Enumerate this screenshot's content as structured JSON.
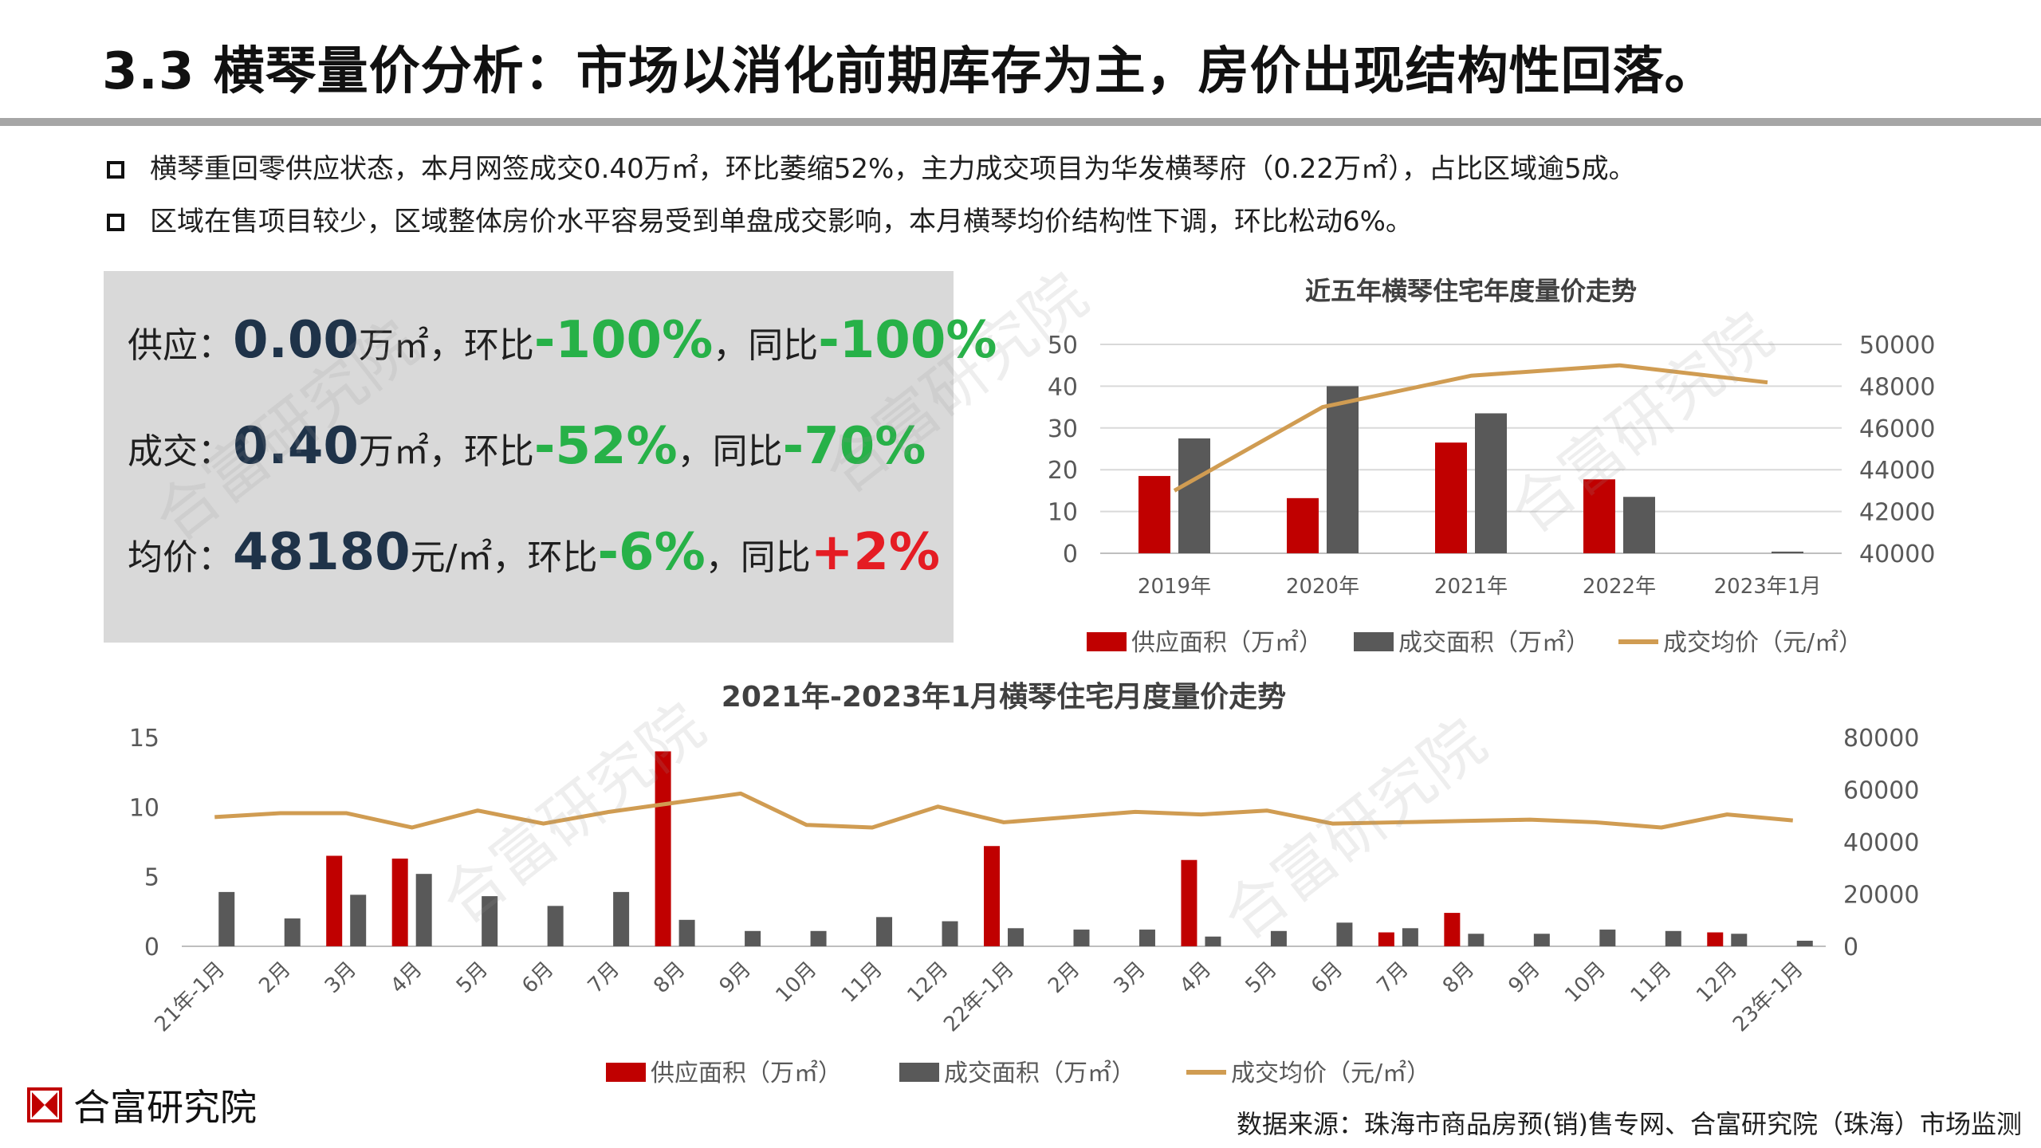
{
  "title": "3.3 横琴量价分析：市场以消化前期库存为主，房价出现结构性回落。",
  "bullets": [
    "横琴重回零供应状态，本月网签成交0.40万㎡，环比萎缩52%，主力成交项目为华发横琴府（0.22万㎡），占比区域逾5成。",
    "区域在售项目较少，区域整体房价水平容易受到单盘成交影响，本月横琴均价结构性下调，环比松动6%。"
  ],
  "kpis": {
    "supply": {
      "label": "供应：",
      "value": "0.00",
      "unit": "万㎡，",
      "mom_label": "环比",
      "mom": "-100%",
      "sep": "，",
      "yoy_label": "同比",
      "yoy": "-100%"
    },
    "deal": {
      "label": "成交：",
      "value": "0.40",
      "unit": "万㎡，",
      "mom_label": "环比",
      "mom": "-52%",
      "sep": "，",
      "yoy_label": "同比",
      "yoy": "-70%"
    },
    "price": {
      "label": "均价：",
      "value": "48180",
      "unit": "元/㎡，",
      "mom_label": "环比",
      "mom": "-6%",
      "sep": "，",
      "yoy_label": "同比",
      "yoy": "+2%"
    }
  },
  "colors": {
    "supply": "#c00000",
    "deal": "#595959",
    "price": "#d09c52",
    "negative": "#27b148",
    "positive": "#e51c23",
    "kpi_value": "#1f3349",
    "panel": "#d9d9d9"
  },
  "watermark": "合富研究院",
  "chart_data": [
    {
      "type": "bar",
      "title": "近五年横琴住宅年度量价走势",
      "categories": [
        "2019年",
        "2020年",
        "2021年",
        "2022年",
        "2023年1月"
      ],
      "series": [
        {
          "name": "供应面积（万㎡）",
          "kind": "bar",
          "axis": "left",
          "values": [
            18.5,
            13.2,
            26.5,
            17.7,
            0
          ]
        },
        {
          "name": "成交面积（万㎡）",
          "kind": "bar",
          "axis": "left",
          "values": [
            27.5,
            40.0,
            33.5,
            13.5,
            0.4
          ]
        },
        {
          "name": "成交均价（元/㎡）",
          "kind": "line",
          "axis": "right",
          "values": [
            43000,
            47000,
            48500,
            49000,
            48180
          ]
        }
      ],
      "y_left_ticks": [
        "0",
        "10",
        "20",
        "30",
        "40",
        "50"
      ],
      "y_left_range": [
        0,
        50
      ],
      "y_right_ticks": [
        "40000",
        "42000",
        "44000",
        "46000",
        "48000",
        "50000"
      ],
      "y_right_range": [
        40000,
        50000
      ],
      "grid": true,
      "legend": "bottom"
    },
    {
      "type": "bar",
      "title": "2021年-2023年1月横琴住宅月度量价走势",
      "categories": [
        "21年-1月",
        "2月",
        "3月",
        "4月",
        "5月",
        "6月",
        "7月",
        "8月",
        "9月",
        "10月",
        "11月",
        "12月",
        "22年-1月",
        "2月",
        "3月",
        "4月",
        "5月",
        "6月",
        "7月",
        "8月",
        "9月",
        "10月",
        "11月",
        "12月",
        "23年-1月"
      ],
      "series": [
        {
          "name": "供应面积（万㎡）",
          "kind": "bar",
          "axis": "left",
          "values": [
            0,
            0,
            6.5,
            6.3,
            0,
            0,
            0,
            14.0,
            0,
            0,
            0,
            0,
            7.2,
            0,
            0,
            6.2,
            0,
            0,
            1.0,
            2.4,
            0,
            0,
            0,
            1.0,
            0
          ]
        },
        {
          "name": "成交面积（万㎡）",
          "kind": "bar",
          "axis": "left",
          "values": [
            3.9,
            2.0,
            3.7,
            5.2,
            3.6,
            2.9,
            3.9,
            1.9,
            1.1,
            1.1,
            2.1,
            1.8,
            1.3,
            1.2,
            1.2,
            0.7,
            1.1,
            1.7,
            1.3,
            0.9,
            0.9,
            1.2,
            1.1,
            0.9,
            0.4
          ]
        },
        {
          "name": "成交均价（元/㎡）",
          "kind": "line",
          "axis": "right",
          "values": [
            49500,
            51000,
            51000,
            45500,
            52000,
            47000,
            51500,
            55000,
            58500,
            46500,
            45500,
            53500,
            47500,
            49500,
            51500,
            50500,
            52000,
            47000,
            47500,
            48000,
            48500,
            47500,
            45500,
            50500,
            48200
          ]
        }
      ],
      "y_left_ticks": [
        "0",
        "5",
        "10",
        "15"
      ],
      "y_left_range": [
        0,
        15
      ],
      "y_right_ticks": [
        "0",
        "20000",
        "40000",
        "60000",
        "80000"
      ],
      "y_right_range": [
        0,
        80000
      ],
      "grid": false,
      "legend": "bottom"
    }
  ],
  "footer": {
    "logo_name": "合富研究院",
    "source": "数据来源：珠海市商品房预(销)售专网、合富研究院（珠海）市场监测"
  }
}
